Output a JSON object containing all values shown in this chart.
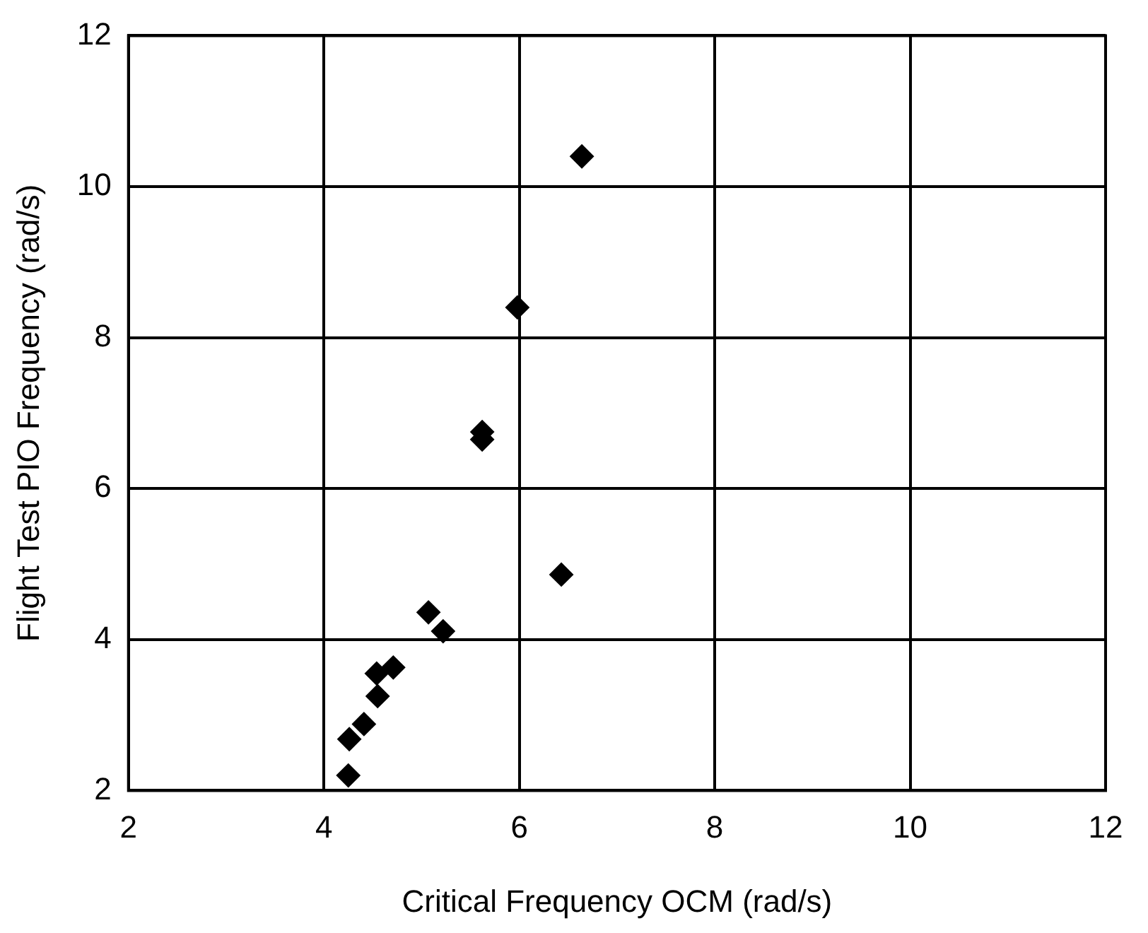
{
  "chart_data": {
    "type": "scatter",
    "xlabel": "Critical Frequency OCM (rad/s)",
    "ylabel": "Flight Test PIO Frequency (rad/s)",
    "x": [
      6.64,
      5.98,
      5.62,
      5.62,
      6.43,
      5.07,
      5.22,
      4.71,
      4.54,
      4.55,
      4.41,
      4.26,
      4.25
    ],
    "values": [
      10.4,
      8.4,
      6.75,
      6.65,
      4.86,
      4.36,
      4.11,
      3.63,
      3.55,
      3.25,
      2.88,
      2.68,
      2.2
    ],
    "color": "#000000",
    "marker": "diamond",
    "xlim": [
      2,
      12
    ],
    "xticks": [
      2,
      4,
      6,
      8,
      10,
      12
    ],
    "ylim": [
      2,
      12
    ],
    "yticks": [
      2,
      4,
      6,
      8,
      10,
      12
    ],
    "grid": true,
    "legend": false
  }
}
